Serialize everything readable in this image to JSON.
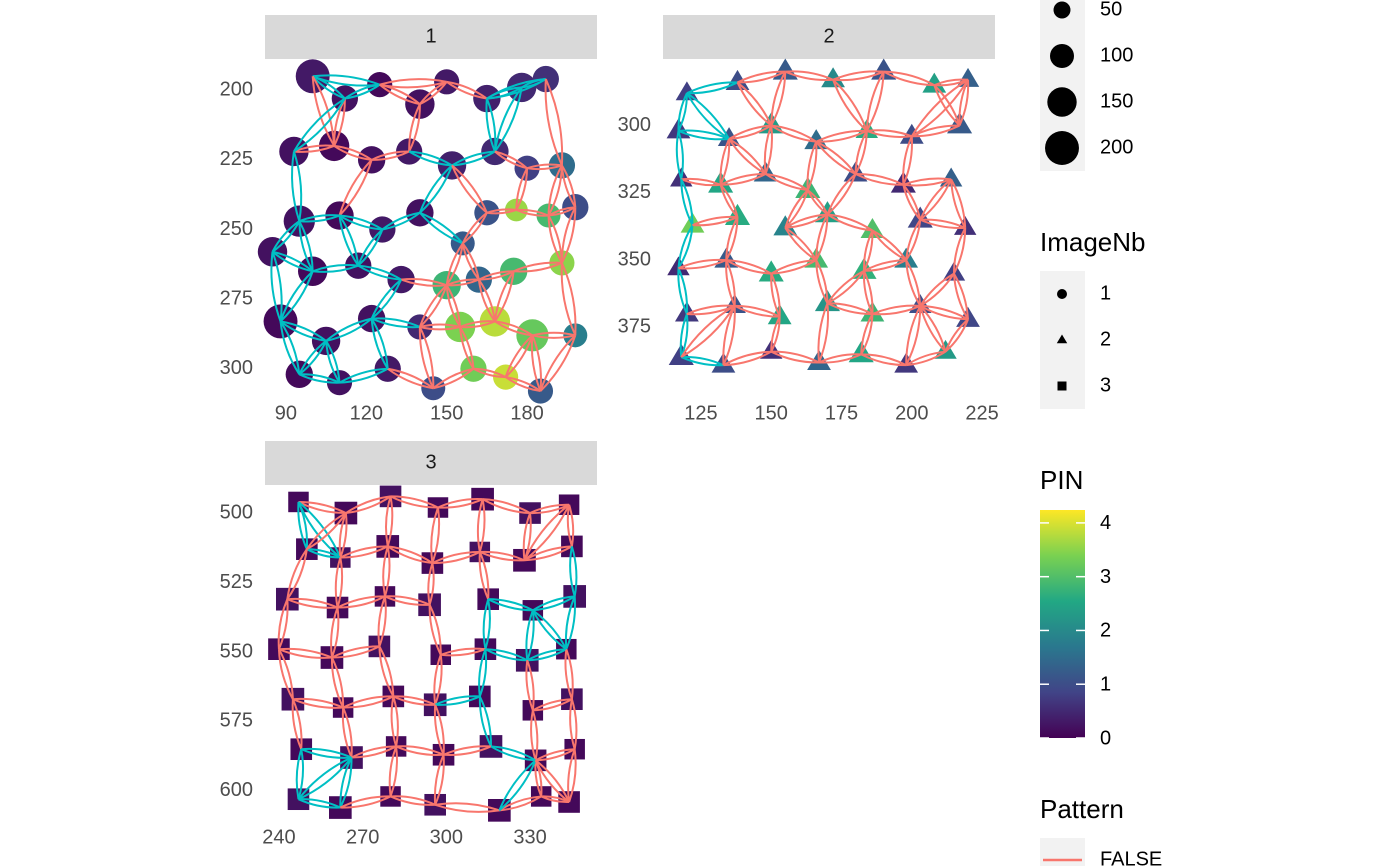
{
  "chart_data": {
    "type": "scatter",
    "grid": false,
    "pattern_colors": {
      "true": "#00bfc4",
      "false": "#f8766d"
    },
    "size_legend": {
      "values": [
        50,
        100,
        150,
        200
      ]
    },
    "shape_legend": {
      "title": "ImageNb",
      "labels": [
        "1",
        "2",
        "3"
      ],
      "shapes": [
        "circle",
        "triangle",
        "square"
      ]
    },
    "color_scale": {
      "title": "PIN",
      "lim": [
        0,
        4.24
      ],
      "ticks": [
        0,
        1,
        2,
        3,
        4
      ],
      "colors": [
        "#440154",
        "#414487",
        "#2a788e",
        "#22a884",
        "#7ad151",
        "#fde725"
      ]
    },
    "pattern_legend": {
      "title": "Pattern",
      "labels": [
        "FALSE"
      ]
    },
    "panels": [
      {
        "strip": "1",
        "shape": "circle",
        "xlim": [
          82.2,
          206.1
        ],
        "xticks": [
          90,
          120,
          150,
          180
        ],
        "ylim": [
          188.8,
          310.5
        ],
        "yticks": [
          200,
          225,
          250,
          275,
          300
        ],
        "y_reverse": true,
        "points": [
          [
            100,
            195,
            200,
            0.3,
            true
          ],
          [
            112,
            203,
            120,
            0.2,
            true
          ],
          [
            125,
            198,
            110,
            0.1,
            true
          ],
          [
            140,
            205,
            150,
            0.2,
            false
          ],
          [
            150,
            197,
            110,
            0.3,
            false
          ],
          [
            165,
            203,
            130,
            0.4,
            true
          ],
          [
            178,
            199,
            150,
            0.5,
            true
          ],
          [
            187,
            196,
            120,
            0.6,
            true
          ],
          [
            93,
            222,
            150,
            0.2,
            true
          ],
          [
            108,
            220,
            160,
            0.1,
            false
          ],
          [
            122,
            225,
            130,
            0.2,
            false
          ],
          [
            136,
            222,
            120,
            0.3,
            true
          ],
          [
            152,
            227,
            140,
            0.4,
            true
          ],
          [
            168,
            222,
            130,
            0.5,
            true
          ],
          [
            180,
            228,
            110,
            0.8,
            false
          ],
          [
            193,
            227,
            120,
            1.5,
            false
          ],
          [
            95,
            247,
            170,
            0.2,
            true
          ],
          [
            110,
            245,
            140,
            0.1,
            true
          ],
          [
            126,
            250,
            120,
            0.3,
            true
          ],
          [
            140,
            244,
            130,
            0.2,
            true
          ],
          [
            156,
            255,
            100,
            1.2,
            true
          ],
          [
            165,
            244,
            110,
            1.1,
            false
          ],
          [
            176,
            243,
            90,
            3.6,
            false
          ],
          [
            188,
            245,
            100,
            2.9,
            false
          ],
          [
            198,
            242,
            120,
            1.0,
            false
          ],
          [
            85,
            258,
            150,
            0.2,
            true
          ],
          [
            100,
            265,
            150,
            0.1,
            true
          ],
          [
            117,
            263,
            120,
            0.2,
            true
          ],
          [
            133,
            268,
            130,
            0.3,
            true
          ],
          [
            150,
            270,
            140,
            2.8,
            false
          ],
          [
            162,
            268,
            120,
            1.4,
            false
          ],
          [
            175,
            265,
            130,
            2.9,
            false
          ],
          [
            193,
            262,
            110,
            3.5,
            false
          ],
          [
            88,
            283,
            200,
            0.1,
            true
          ],
          [
            105,
            290,
            140,
            0.2,
            true
          ],
          [
            122,
            282,
            130,
            0.2,
            true
          ],
          [
            140,
            285,
            110,
            0.5,
            true
          ],
          [
            155,
            285,
            160,
            3.4,
            false
          ],
          [
            168,
            283,
            160,
            3.8,
            false
          ],
          [
            182,
            288,
            180,
            3.2,
            false
          ],
          [
            198,
            288,
            100,
            1.8,
            false
          ],
          [
            95,
            302,
            130,
            0.1,
            true
          ],
          [
            110,
            305,
            110,
            0.2,
            true
          ],
          [
            128,
            300,
            120,
            0.3,
            true
          ],
          [
            145,
            307,
            100,
            1.0,
            false
          ],
          [
            160,
            300,
            120,
            3.3,
            false
          ],
          [
            172,
            303,
            110,
            3.9,
            false
          ],
          [
            185,
            308,
            110,
            1.2,
            false
          ]
        ]
      },
      {
        "strip": "2",
        "shape": "triangle",
        "xlim": [
          111.5,
          229.6
        ],
        "xticks": [
          125,
          150,
          175,
          200,
          225
        ],
        "ylim": [
          275.3,
          401.2
        ],
        "yticks": [
          300,
          325,
          350,
          375
        ],
        "y_reverse": true,
        "points": [
          [
            120,
            288,
            80,
            0.8,
            true
          ],
          [
            138,
            284,
            90,
            1.0,
            true
          ],
          [
            155,
            280,
            100,
            1.2,
            false
          ],
          [
            172,
            283,
            90,
            2.0,
            false
          ],
          [
            190,
            280,
            100,
            1.1,
            false
          ],
          [
            208,
            285,
            90,
            2.4,
            false
          ],
          [
            220,
            283,
            80,
            1.3,
            false
          ],
          [
            117,
            302,
            90,
            0.7,
            true
          ],
          [
            135,
            305,
            80,
            1.1,
            true
          ],
          [
            150,
            300,
            100,
            2.3,
            false
          ],
          [
            166,
            306,
            90,
            1.5,
            false
          ],
          [
            184,
            302,
            80,
            2.6,
            false
          ],
          [
            200,
            304,
            90,
            1.0,
            false
          ],
          [
            217,
            300,
            100,
            1.2,
            false
          ],
          [
            118,
            320,
            80,
            0.6,
            true
          ],
          [
            132,
            322,
            100,
            2.5,
            false
          ],
          [
            148,
            318,
            90,
            1.4,
            false
          ],
          [
            163,
            324,
            100,
            2.8,
            false
          ],
          [
            180,
            318,
            90,
            1.0,
            false
          ],
          [
            197,
            322,
            100,
            0.5,
            false
          ],
          [
            214,
            320,
            80,
            1.3,
            false
          ],
          [
            122,
            337,
            90,
            3.3,
            true
          ],
          [
            138,
            334,
            100,
            2.6,
            false
          ],
          [
            155,
            338,
            90,
            1.9,
            false
          ],
          [
            170,
            333,
            100,
            2.4,
            false
          ],
          [
            186,
            339,
            90,
            3.0,
            false
          ],
          [
            203,
            335,
            100,
            0.9,
            false
          ],
          [
            219,
            338,
            80,
            0.6,
            false
          ],
          [
            117,
            353,
            80,
            0.5,
            true
          ],
          [
            134,
            350,
            90,
            1.2,
            false
          ],
          [
            150,
            355,
            100,
            2.6,
            false
          ],
          [
            166,
            350,
            90,
            2.9,
            false
          ],
          [
            183,
            354,
            100,
            2.7,
            false
          ],
          [
            198,
            350,
            90,
            1.8,
            false
          ],
          [
            215,
            355,
            80,
            0.8,
            false
          ],
          [
            120,
            370,
            90,
            0.7,
            true
          ],
          [
            137,
            367,
            80,
            1.1,
            false
          ],
          [
            153,
            371,
            90,
            2.5,
            false
          ],
          [
            170,
            366,
            100,
            2.2,
            false
          ],
          [
            186,
            370,
            90,
            2.8,
            false
          ],
          [
            203,
            367,
            80,
            1.0,
            false
          ],
          [
            220,
            372,
            90,
            0.9,
            false
          ],
          [
            118,
            386,
            100,
            0.8,
            true
          ],
          [
            133,
            389,
            90,
            1.0,
            true
          ],
          [
            150,
            384,
            80,
            0.6,
            false
          ],
          [
            167,
            388,
            90,
            1.4,
            false
          ],
          [
            182,
            385,
            100,
            2.5,
            false
          ],
          [
            198,
            389,
            90,
            0.7,
            false
          ],
          [
            212,
            384,
            80,
            2.3,
            false
          ]
        ]
      },
      {
        "strip": "3",
        "shape": "square",
        "xlim": [
          235,
          354
        ],
        "xticks": [
          240,
          270,
          300,
          330
        ],
        "ylim": [
          489.9,
          611.2
        ],
        "yticks": [
          500,
          525,
          550,
          575,
          600
        ],
        "y_reverse": true,
        "points": [
          [
            247,
            496,
            90,
            0.1,
            true
          ],
          [
            264,
            500,
            110,
            0.1,
            false
          ],
          [
            280,
            494,
            100,
            0.2,
            false
          ],
          [
            297,
            498,
            90,
            0.1,
            false
          ],
          [
            313,
            495,
            110,
            0.1,
            false
          ],
          [
            330,
            500,
            100,
            0.2,
            false
          ],
          [
            344,
            497,
            90,
            0.1,
            false
          ],
          [
            250,
            513,
            100,
            0.1,
            true
          ],
          [
            262,
            516,
            90,
            0.2,
            true
          ],
          [
            279,
            512,
            110,
            0.1,
            false
          ],
          [
            295,
            518,
            100,
            0.1,
            false
          ],
          [
            312,
            514,
            90,
            0.2,
            false
          ],
          [
            328,
            517,
            110,
            0.1,
            false
          ],
          [
            345,
            512,
            100,
            0.1,
            true
          ],
          [
            243,
            531,
            110,
            0.2,
            false
          ],
          [
            261,
            534,
            100,
            0.1,
            false
          ],
          [
            278,
            530,
            90,
            0.1,
            false
          ],
          [
            294,
            533,
            110,
            0.2,
            false
          ],
          [
            315,
            531,
            100,
            0.1,
            true
          ],
          [
            331,
            535,
            90,
            0.1,
            true
          ],
          [
            346,
            530,
            110,
            0.2,
            true
          ],
          [
            240,
            549,
            100,
            0.1,
            false
          ],
          [
            259,
            552,
            110,
            0.1,
            false
          ],
          [
            276,
            548,
            100,
            0.2,
            false
          ],
          [
            298,
            551,
            90,
            0.1,
            false
          ],
          [
            314,
            549,
            100,
            0.1,
            true
          ],
          [
            329,
            553,
            110,
            0.2,
            true
          ],
          [
            343,
            549,
            90,
            0.1,
            true
          ],
          [
            245,
            567,
            110,
            0.2,
            false
          ],
          [
            263,
            570,
            90,
            0.1,
            false
          ],
          [
            281,
            566,
            100,
            0.1,
            false
          ],
          [
            296,
            569,
            110,
            0.2,
            true
          ],
          [
            312,
            566,
            100,
            0.1,
            true
          ],
          [
            331,
            571,
            90,
            0.1,
            false
          ],
          [
            345,
            567,
            100,
            0.2,
            false
          ],
          [
            248,
            585,
            100,
            0.1,
            true
          ],
          [
            266,
            588,
            110,
            0.2,
            true
          ],
          [
            282,
            584,
            90,
            0.1,
            false
          ],
          [
            299,
            587,
            100,
            0.1,
            false
          ],
          [
            316,
            584,
            110,
            0.2,
            true
          ],
          [
            332,
            589,
            100,
            0.1,
            true
          ],
          [
            346,
            585,
            90,
            0.1,
            false
          ],
          [
            247,
            603,
            100,
            0.2,
            true
          ],
          [
            262,
            606,
            110,
            0.1,
            true
          ],
          [
            280,
            602,
            90,
            0.1,
            false
          ],
          [
            296,
            605,
            100,
            0.2,
            false
          ],
          [
            319,
            607,
            110,
            0.1,
            true
          ],
          [
            334,
            602,
            90,
            0.1,
            false
          ],
          [
            344,
            604,
            100,
            0.1,
            false
          ]
        ]
      }
    ]
  }
}
